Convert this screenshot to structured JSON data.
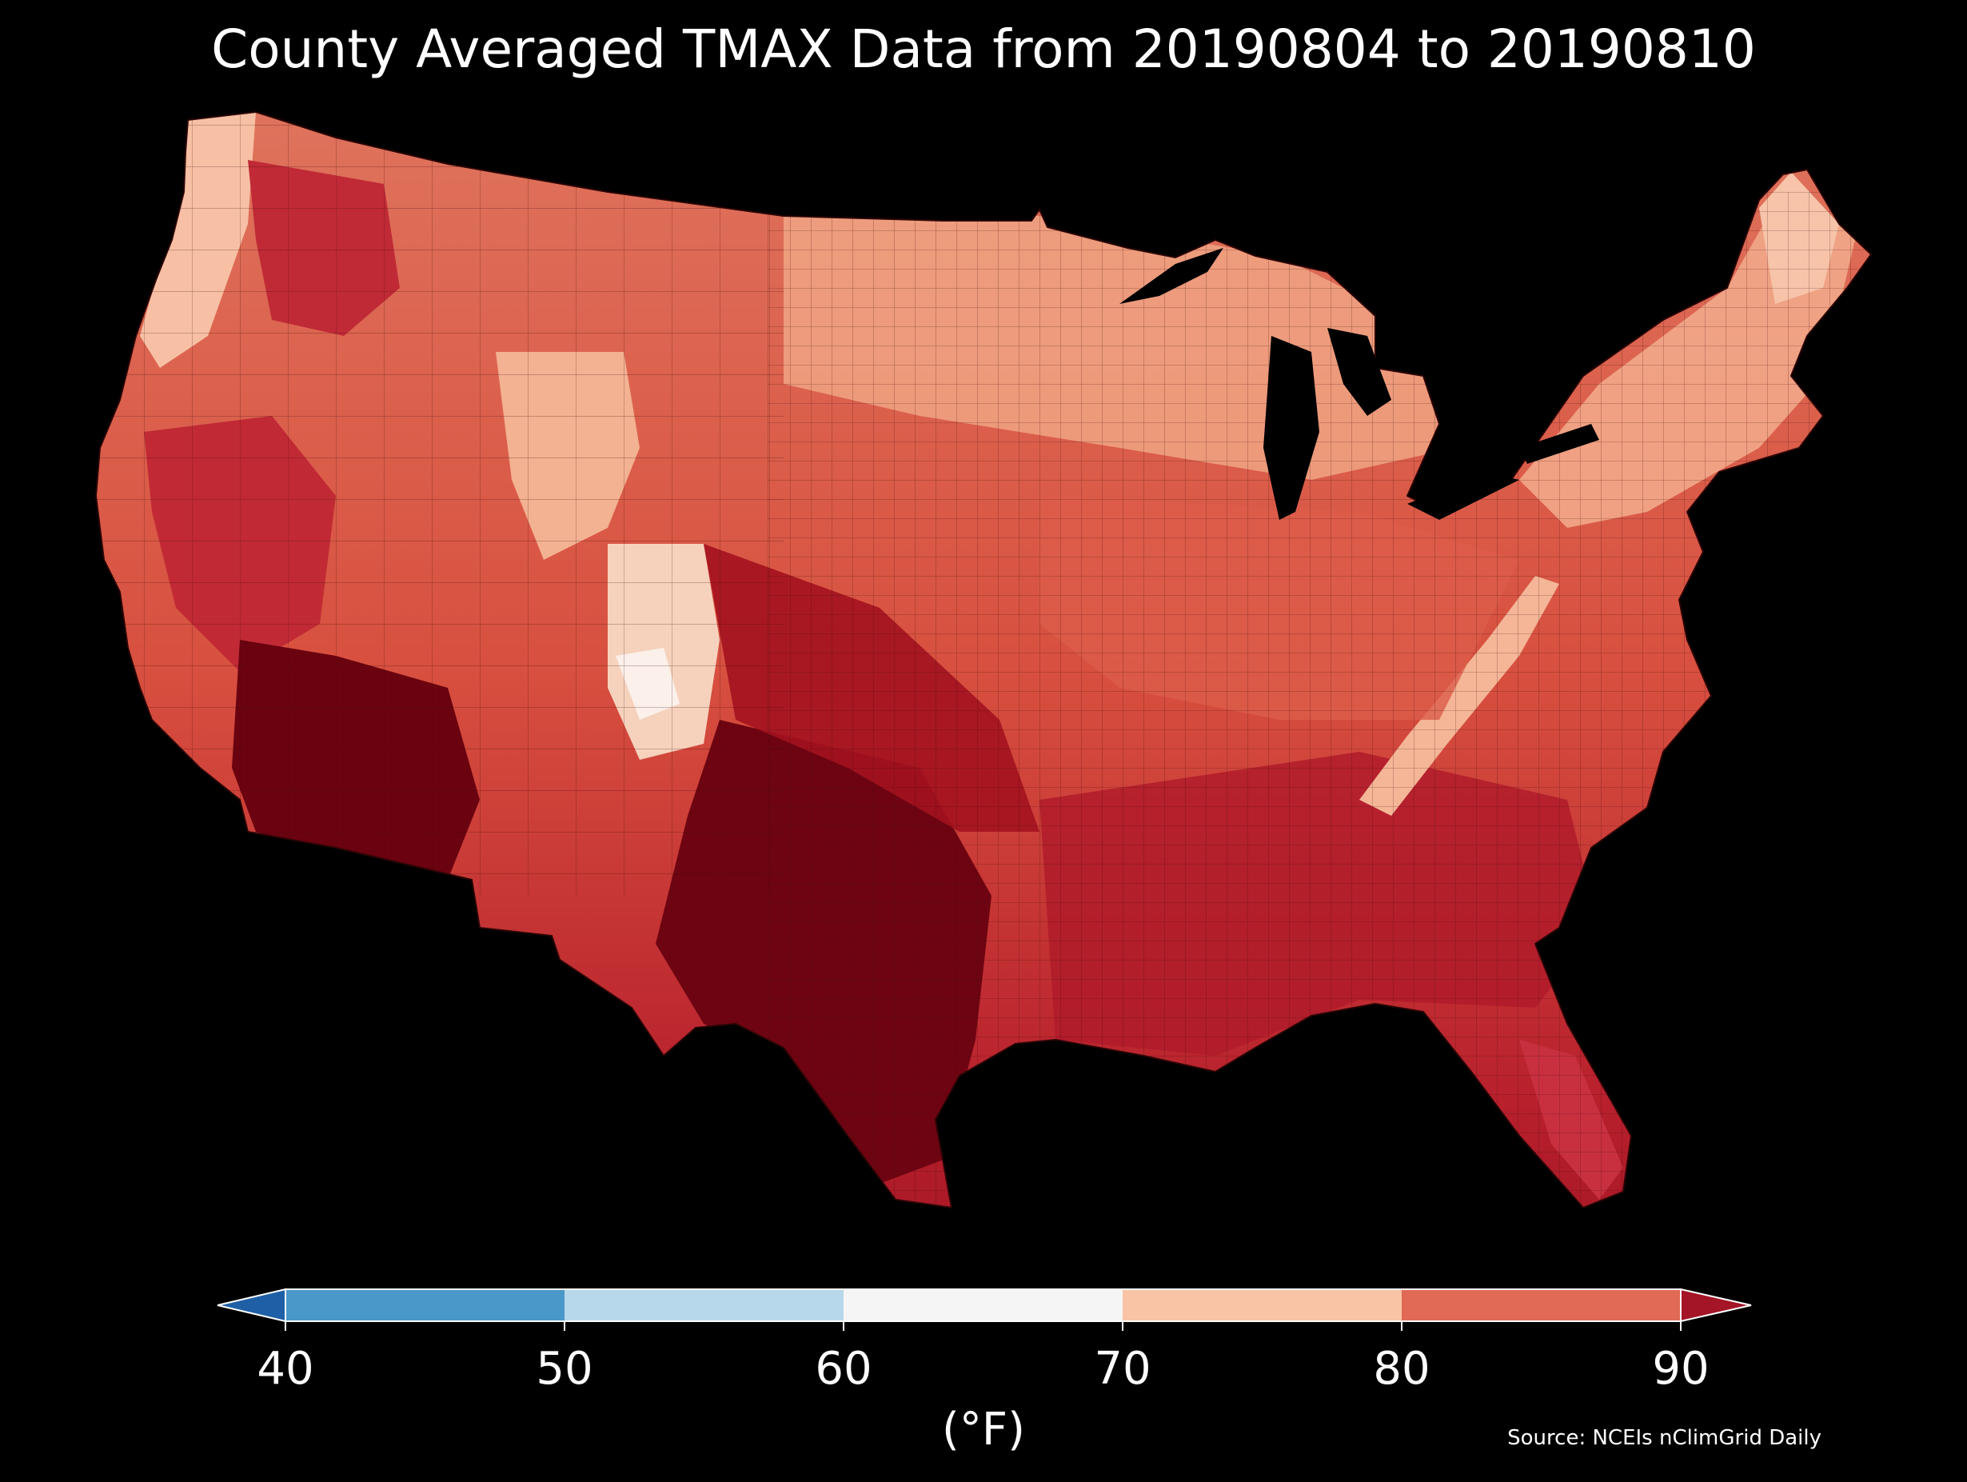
{
  "title": "County Averaged TMAX Data from 20190804 to 20190810",
  "colorbar": {
    "ticks": [
      "40",
      "50",
      "60",
      "70",
      "80",
      "90"
    ],
    "units": "(°F)",
    "bins": [
      {
        "range": "<40",
        "color": "#1f5fa6"
      },
      {
        "range": "40-50",
        "color": "#4a98c9"
      },
      {
        "range": "50-60",
        "color": "#b7d8ea"
      },
      {
        "range": "60-70",
        "color": "#f5f5f5"
      },
      {
        "range": "70-80",
        "color": "#f9c3a5"
      },
      {
        "range": "80-90",
        "color": "#e06a55"
      },
      {
        "range": ">90",
        "color": "#a31527"
      }
    ]
  },
  "source": "Source: NCEIs nClimGrid Daily",
  "map": {
    "subject": "contiguous United States county averaged maximum temperature",
    "colors": {
      "background": "#000000",
      "hottest": "#67000d",
      "very_hot": "#a50f22",
      "hot": "#cf3a3c",
      "warm": "#e0705c",
      "mild": "#f0a083",
      "cool": "#f9c9ae",
      "coolest": "#f8f2ee"
    }
  }
}
